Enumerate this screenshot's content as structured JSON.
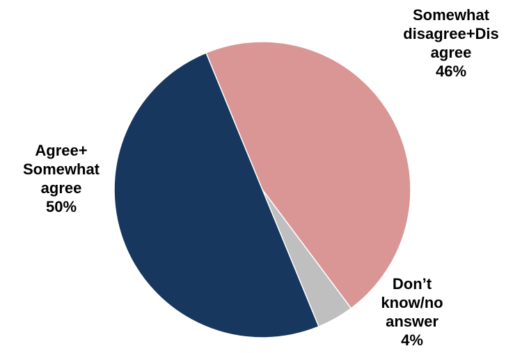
{
  "chart_data": {
    "type": "pie",
    "title": "",
    "slices": [
      {
        "label_lines": [
          "Somewhat",
          "disagree+Dis",
          "agree"
        ],
        "value_label": "46%",
        "value": 46,
        "color": "#D99694"
      },
      {
        "label_lines": [
          "Don’t",
          "know/no",
          "answer"
        ],
        "value_label": "4%",
        "value": 4,
        "color": "#BFBFBF"
      },
      {
        "label_lines": [
          "Agree+",
          "Somewhat",
          "agree"
        ],
        "value_label": "50%",
        "value": 50,
        "color": "#17375E"
      }
    ],
    "start": "top",
    "direction": "clockwise",
    "legend": "none"
  }
}
